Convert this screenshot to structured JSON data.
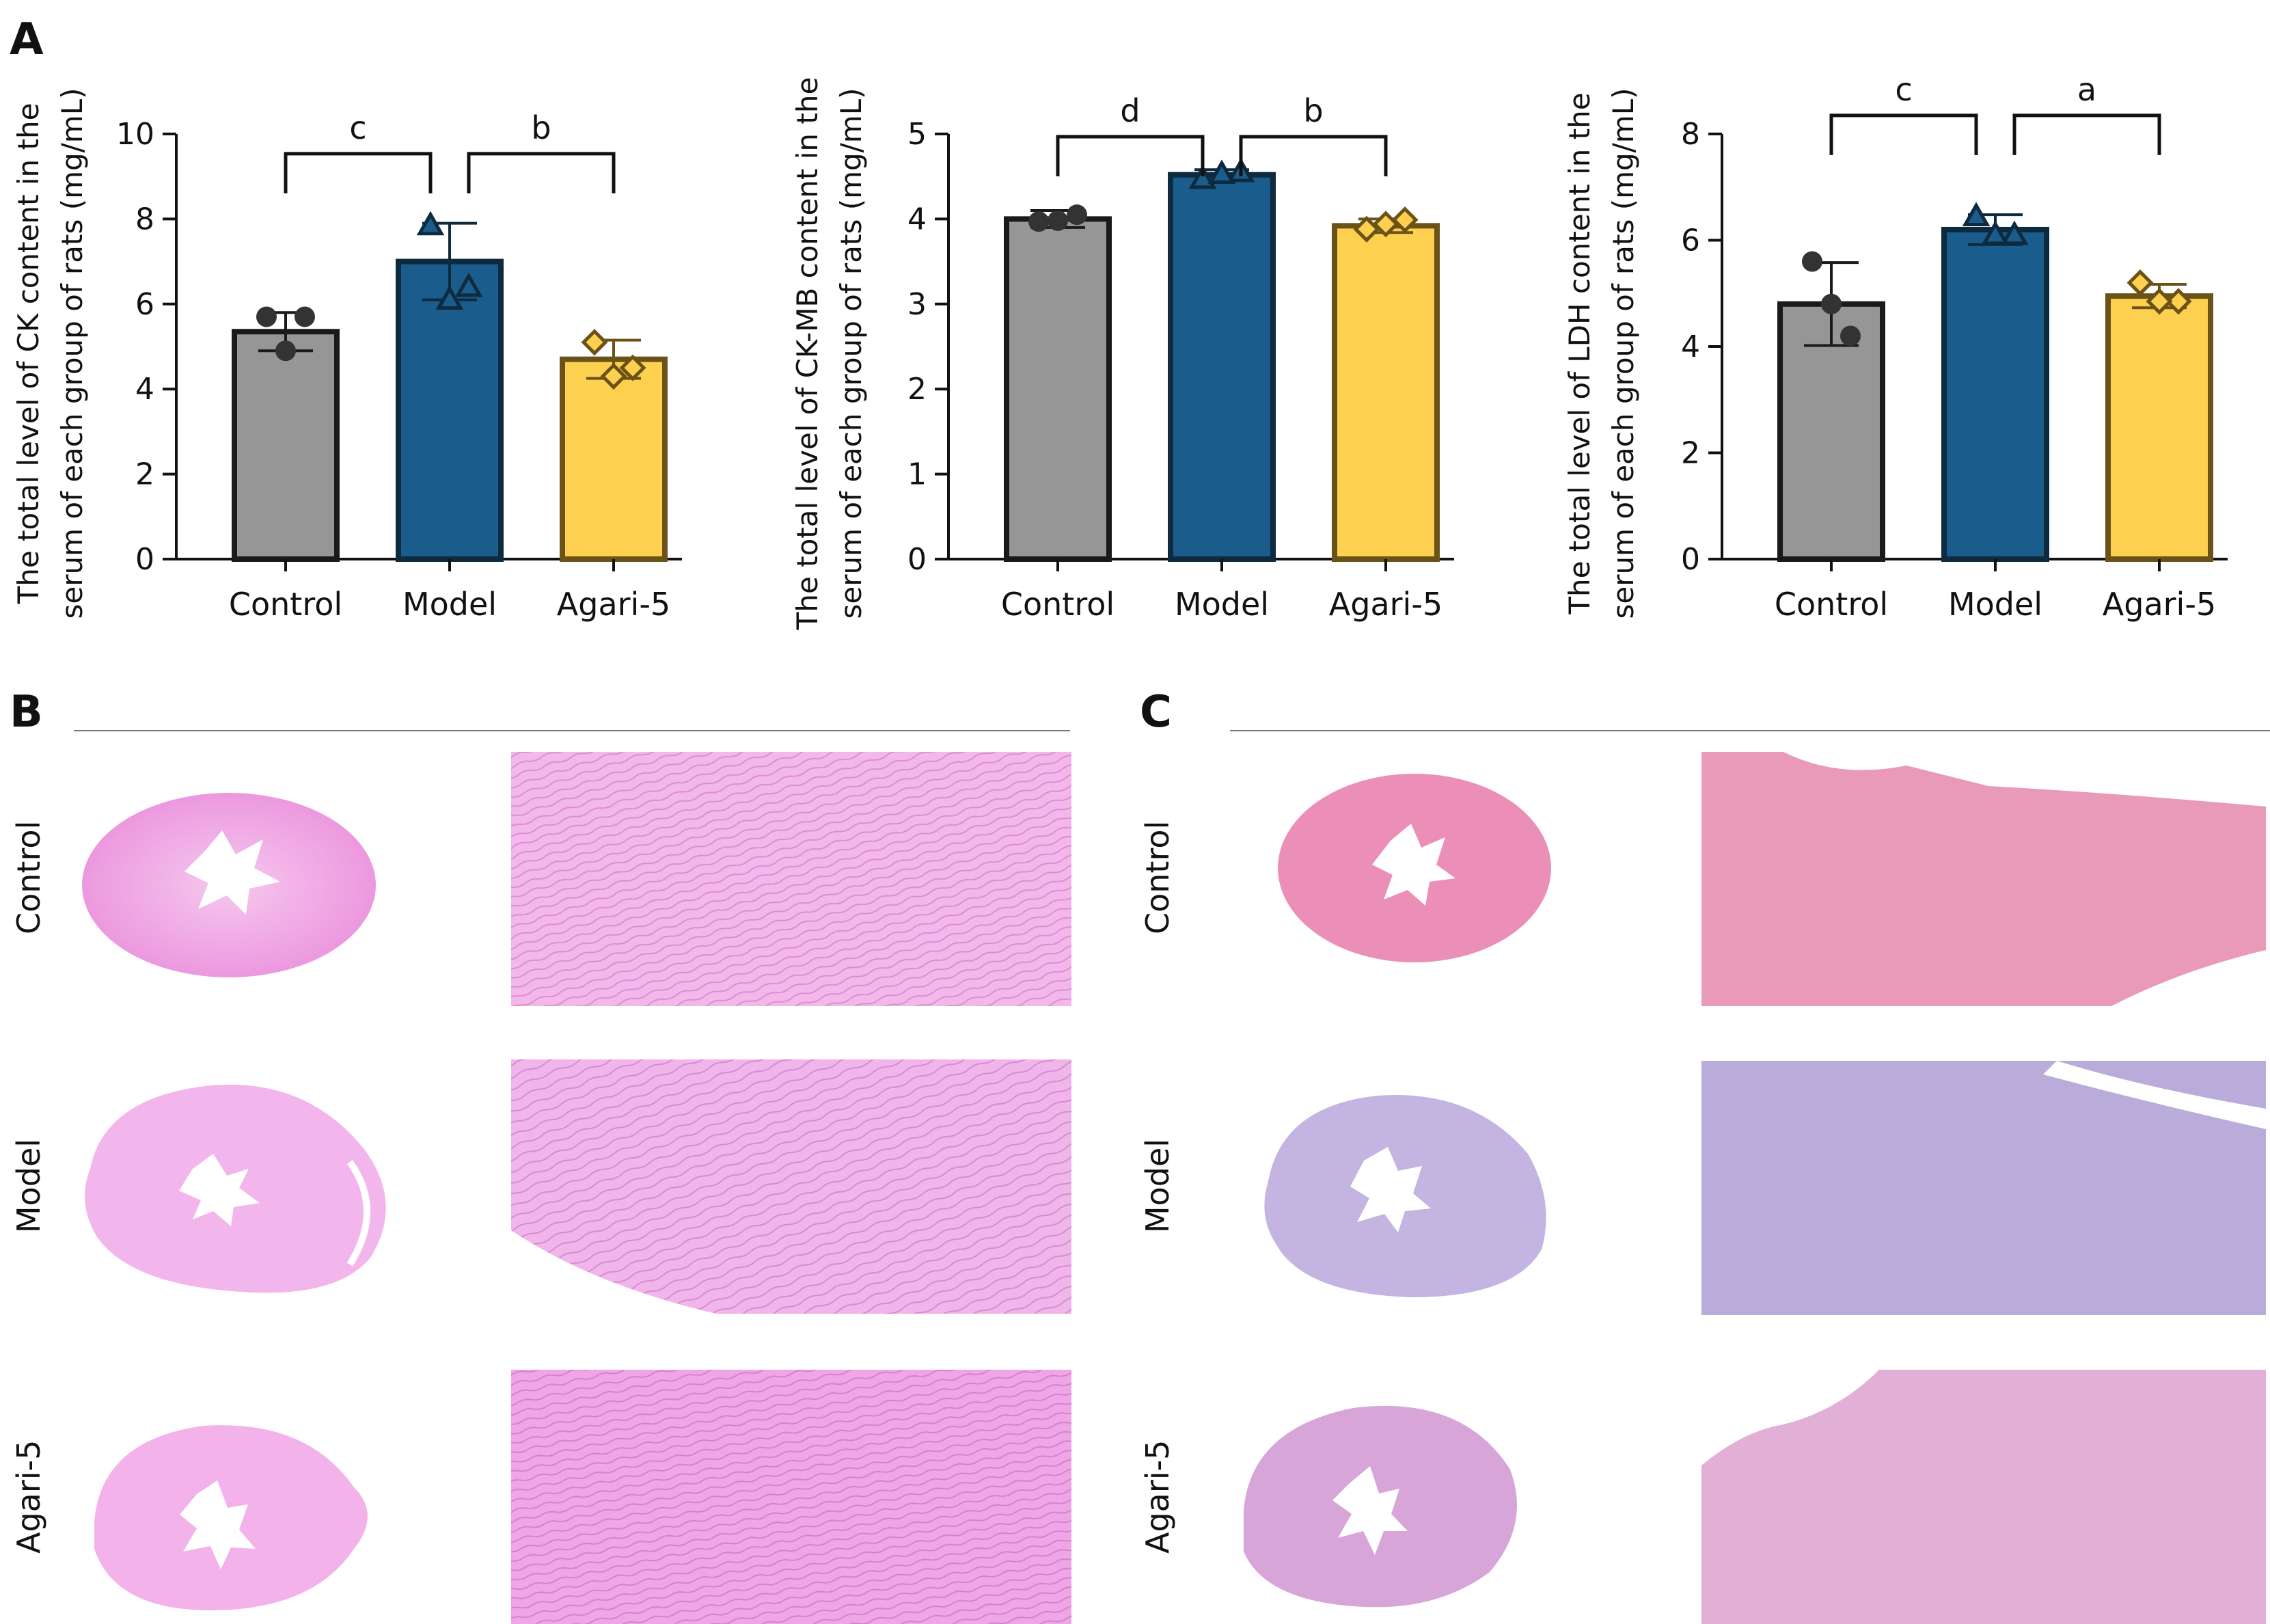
{
  "figure": {
    "panel_a": "A",
    "panel_b": "B",
    "panel_c": "C",
    "row_labels": [
      "Control",
      "Model",
      "Agari-5"
    ]
  },
  "colors": {
    "control": "#969696",
    "model": "#1a5c8c",
    "agari": "#fdd14f",
    "control_edge": "#1a1a1a",
    "model_edge": "#0d2a3f",
    "agari_edge": "#6b5318",
    "he_light": "#f0b8e8",
    "he_dark": "#e07fd6",
    "masson_pink": "#e89ab8",
    "masson_blue": "#b6aedf"
  },
  "chart_data": [
    {
      "type": "bar",
      "title": "",
      "categories": [
        "Control",
        "Model",
        "Agari-5"
      ],
      "values": [
        5.35,
        7.0,
        4.7
      ],
      "errors": [
        0.45,
        0.9,
        0.45
      ],
      "points": [
        [
          5.7,
          5.7,
          4.9
        ],
        [
          7.85,
          6.4,
          6.1
        ],
        [
          5.1,
          4.5,
          4.3
        ]
      ],
      "ylabel_line1": "The total level of CK content in the",
      "ylabel_line2": "serum of each group of rats (mg/mL)",
      "ylim": [
        0,
        10
      ],
      "yticks": [
        "0",
        "2",
        "4",
        "6",
        "8",
        "10"
      ],
      "significance": [
        {
          "from": 0,
          "to": 1,
          "label": "c",
          "y": 9.6
        },
        {
          "from": 1,
          "to": 2,
          "label": "b",
          "y": 9.6
        }
      ]
    },
    {
      "type": "bar",
      "title": "",
      "categories": [
        "Control",
        "Model",
        "Agari-5"
      ],
      "values": [
        4.0,
        4.52,
        3.92
      ],
      "errors": [
        0.1,
        0.06,
        0.08
      ],
      "points": [
        [
          3.97,
          4.05,
          3.98
        ],
        [
          4.47,
          4.55,
          4.53
        ],
        [
          3.88,
          3.99,
          3.94
        ]
      ],
      "ylabel_line1": "The total level of CK-MB content in the",
      "ylabel_line2": "serum of each group of rats (mg/mL)",
      "ylim": [
        0,
        5
      ],
      "yticks": [
        "0",
        "1",
        "2",
        "3",
        "4",
        "5"
      ],
      "significance": [
        {
          "from": 0,
          "to": 1,
          "label": "d",
          "y": 5.0
        },
        {
          "from": 1,
          "to": 2,
          "label": "b",
          "y": 5.0
        }
      ]
    },
    {
      "type": "bar",
      "title": "",
      "categories": [
        "Control",
        "Model",
        "Agari-5"
      ],
      "values": [
        4.8,
        6.2,
        4.95
      ],
      "errors": [
        0.78,
        0.28,
        0.22
      ],
      "points": [
        [
          5.6,
          4.2,
          4.8
        ],
        [
          6.45,
          6.1,
          6.1
        ],
        [
          5.2,
          4.85,
          4.85
        ]
      ],
      "ylabel_line1": "The total level of LDH content in the",
      "ylabel_line2": "serum of each group of rats (mg/mL)",
      "ylim": [
        0,
        8
      ],
      "yticks": [
        "0",
        "2",
        "4",
        "6",
        "8"
      ],
      "significance": [
        {
          "from": 0,
          "to": 1,
          "label": "c",
          "y": 8.4
        },
        {
          "from": 1,
          "to": 2,
          "label": "a",
          "y": 8.4
        }
      ]
    }
  ]
}
